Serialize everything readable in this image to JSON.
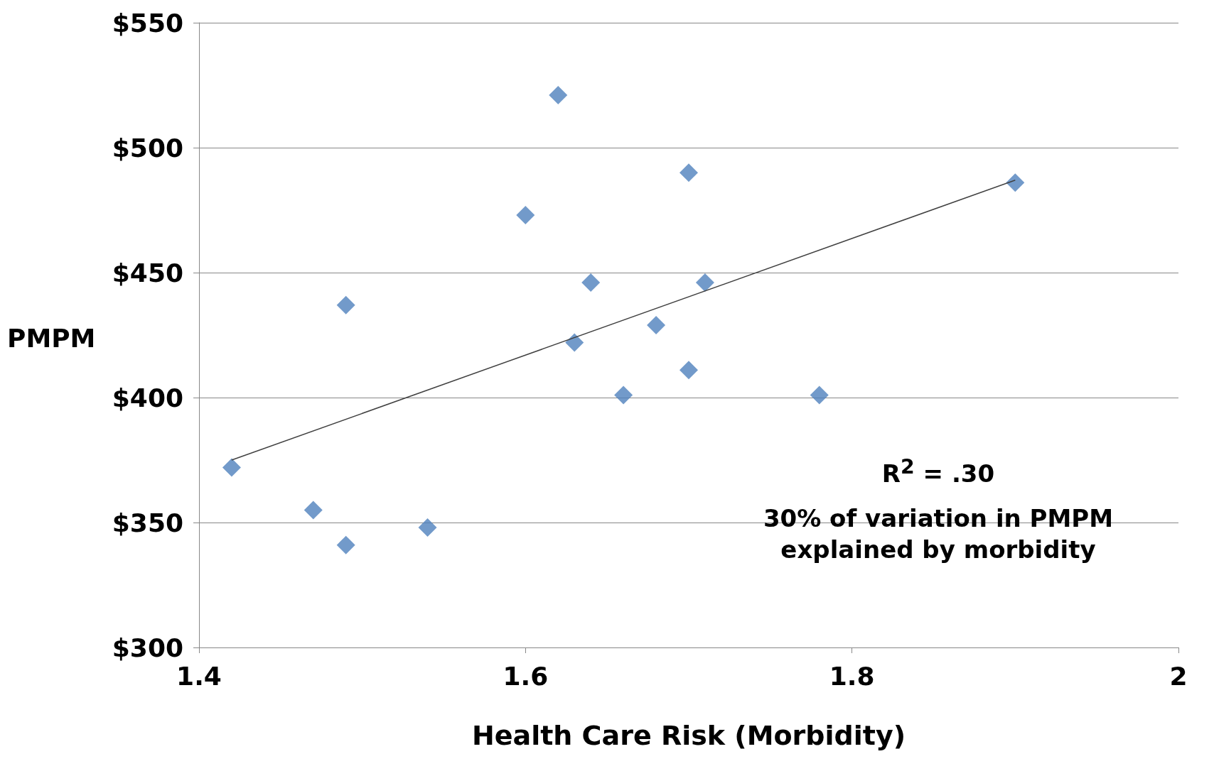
{
  "chart_data": {
    "type": "scatter",
    "xlabel": "Health Care Risk (Morbidity)",
    "ylabel": "PMPM",
    "xlim": [
      1.4,
      2
    ],
    "xticks": [
      1.4,
      1.6,
      1.8,
      2
    ],
    "ylim": [
      300,
      550
    ],
    "yticks": [
      {
        "value": 300,
        "label": "$300"
      },
      {
        "value": 350,
        "label": "$350"
      },
      {
        "value": 400,
        "label": "$400"
      },
      {
        "value": 450,
        "label": "$450"
      },
      {
        "value": 500,
        "label": "$500"
      },
      {
        "value": 550,
        "label": "$550"
      }
    ],
    "grid": "y",
    "marker": "diamond",
    "series": [
      {
        "color": "#4f81bd",
        "x": [
          1.62,
          1.7,
          1.9,
          1.6,
          1.64,
          1.71,
          1.49,
          1.68,
          1.63,
          1.7,
          1.66,
          1.78,
          1.42,
          1.47,
          1.49,
          1.54
        ],
        "values": [
          521,
          490,
          486,
          473,
          446,
          446,
          437,
          429,
          422,
          411,
          401,
          401,
          372,
          355,
          341,
          348
        ]
      },
      {
        "type": "line",
        "marker": "none",
        "color": "#404040",
        "x": [
          1.42,
          1.9
        ],
        "values": [
          375,
          487
        ]
      }
    ],
    "annotations": [
      "R$^{2}$ = .30",
      "30% of variation in PMPM explained by morbidity"
    ]
  }
}
